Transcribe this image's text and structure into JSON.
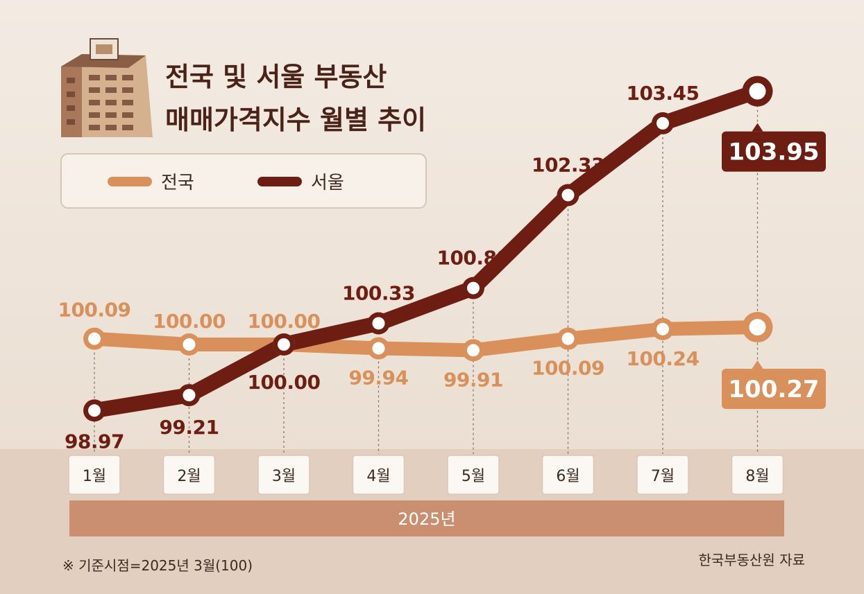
{
  "chart_data": {
    "type": "line",
    "title": "전국 및 서울 부동산\n매매가격지수 월별 추이",
    "title_lines": [
      "전국 및 서울 부동산",
      "매매가격지수 월별 추이"
    ],
    "categories": [
      "1월",
      "2월",
      "3월",
      "4월",
      "5월",
      "6월",
      "7월",
      "8월"
    ],
    "year_label": "2025년",
    "series": [
      {
        "name": "전국",
        "color": "#d9905a",
        "values": [
          100.09,
          100.0,
          100.0,
          99.94,
          99.91,
          100.09,
          100.24,
          100.27
        ],
        "labels": [
          "100.09",
          "100.00",
          "100.00",
          "99.94",
          "99.91",
          "100.09",
          "100.24",
          "100.27"
        ]
      },
      {
        "name": "서울",
        "color": "#6e1d12",
        "values": [
          98.97,
          99.21,
          100.0,
          100.33,
          100.88,
          102.33,
          103.45,
          103.95
        ],
        "labels": [
          "98.97",
          "99.21",
          "100.00",
          "100.33",
          "100.88",
          "102.33",
          "103.45",
          "103.95"
        ]
      }
    ],
    "legend": {
      "position": "top-left"
    },
    "grid": false,
    "note": "※ 기준시점=2025년 3월(100)",
    "source": "한국부동산원 자료"
  },
  "colors": {
    "background": "#ece1d6",
    "band": "#dcc9b8",
    "year_bar": "#c98f70",
    "national": "#d9905a",
    "seoul": "#6e1d12"
  }
}
